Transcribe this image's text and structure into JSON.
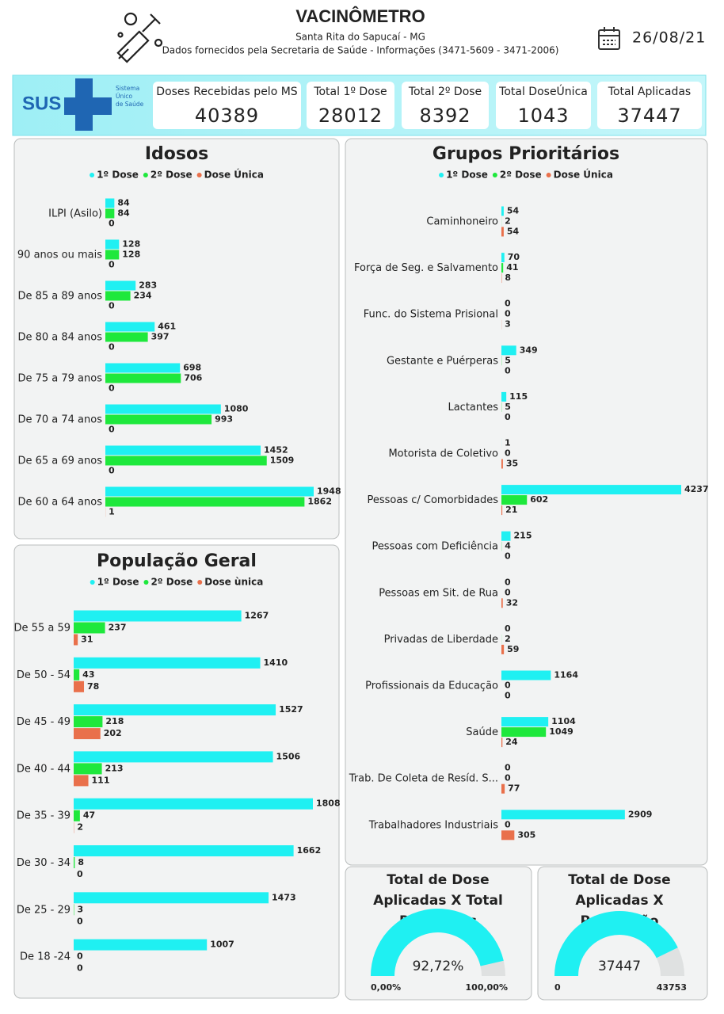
{
  "header": {
    "title": "VACINÔMETRO",
    "subtitle": "Santa Rita do Sapucaí - MG",
    "source": "Dados fornecidos pela Secretaria de Saúde - Informações (3471-5609 - 3471-2006)",
    "date": "26/08/21"
  },
  "logo": {
    "brand": "SUS",
    "lines": [
      "Sistema",
      "Único",
      "de Saúde"
    ]
  },
  "cards": [
    {
      "label": "Doses Recebidas pelo MS",
      "value": 40389
    },
    {
      "label": "Total 1º Dose",
      "value": 28012
    },
    {
      "label": "Total 2º Dose",
      "value": 8392
    },
    {
      "label": "Total DoseÚnica",
      "value": 1043
    },
    {
      "label": "Total Aplicadas",
      "value": 37447
    }
  ],
  "chart_data": [
    {
      "type": "hbar",
      "title": "Idosos",
      "categories": [
        "ILPI (Asilo)",
        "90 anos ou mais",
        "De 85 a 89 anos",
        "De 80 a 84 anos",
        "De 75 a 79 anos",
        "De 70 a 74 anos",
        "De 65 a 69 anos",
        "De 60 a 64 anos"
      ],
      "series": [
        {
          "name": "1º Dose",
          "color": "#1ff0f2",
          "values": [
            84,
            128,
            283,
            461,
            698,
            1080,
            1452,
            1948
          ]
        },
        {
          "name": "2º Dose",
          "color": "#1ee83c",
          "values": [
            84,
            128,
            234,
            397,
            706,
            993,
            1509,
            1862
          ]
        },
        {
          "name": "Dose Única",
          "color": "#e9704b",
          "values": [
            0,
            0,
            0,
            0,
            0,
            0,
            0,
            1
          ]
        }
      ]
    },
    {
      "type": "hbar",
      "title": "Grupos Prioritários",
      "categories": [
        "Caminhoneiro",
        "Força de Seg. e Salvamento",
        "Func. do Sistema Prisional",
        "Gestante e Puérperas",
        "Lactantes",
        "Motorista de Coletivo",
        "Pessoas c/ Comorbidades",
        "Pessoas com Deficiência",
        "Pessoas em Sit. de Rua",
        "Privadas de Liberdade",
        "Profissionais da Educação",
        "Saúde",
        "Trab. De Coleta de Resíd. S...",
        "Trabalhadores Industriais"
      ],
      "series": [
        {
          "name": "1º Dose",
          "color": "#1ff0f2",
          "values": [
            54,
            70,
            0,
            349,
            115,
            1,
            4237,
            215,
            0,
            0,
            1164,
            1104,
            0,
            2909
          ]
        },
        {
          "name": "2º Dose",
          "color": "#1ee83c",
          "values": [
            2,
            41,
            0,
            5,
            5,
            0,
            602,
            4,
            0,
            2,
            0,
            1049,
            0,
            0
          ]
        },
        {
          "name": "Dose Única",
          "color": "#e9704b",
          "values": [
            54,
            8,
            3,
            0,
            0,
            35,
            21,
            0,
            32,
            59,
            0,
            24,
            77,
            305
          ]
        }
      ]
    },
    {
      "type": "hbar",
      "title": "População Geral",
      "categories": [
        "De 55 a 59",
        "De 50 - 54",
        "De 45 - 49",
        "De 40 - 44",
        "De 35 - 39",
        "De 30 - 34",
        "De 25 - 29",
        "De 18 -24"
      ],
      "series": [
        {
          "name": "1º Dose",
          "color": "#1ff0f2",
          "values": [
            1267,
            1410,
            1527,
            1506,
            1808,
            1662,
            1473,
            1007
          ]
        },
        {
          "name": "2º Dose",
          "color": "#1ee83c",
          "values": [
            237,
            43,
            218,
            213,
            47,
            8,
            3,
            0
          ]
        },
        {
          "name": "Dose ùnica",
          "color": "#e9704b",
          "values": [
            31,
            78,
            202,
            111,
            2,
            0,
            0,
            0
          ]
        }
      ]
    },
    {
      "type": "gauge",
      "title": "Total de Dose Aplicadas X Total Recebidas",
      "color": "#1ff0f2",
      "value": 92.72,
      "value_label": "92,72%",
      "min": {
        "value": 0,
        "label": "0,00%"
      },
      "max": {
        "value": 100,
        "label": "100,00%"
      }
    },
    {
      "type": "gauge",
      "title": "Total de Dose Aplicadas X População",
      "color": "#1ff0f2",
      "value": 37447,
      "min": 0,
      "max": 43753
    }
  ]
}
